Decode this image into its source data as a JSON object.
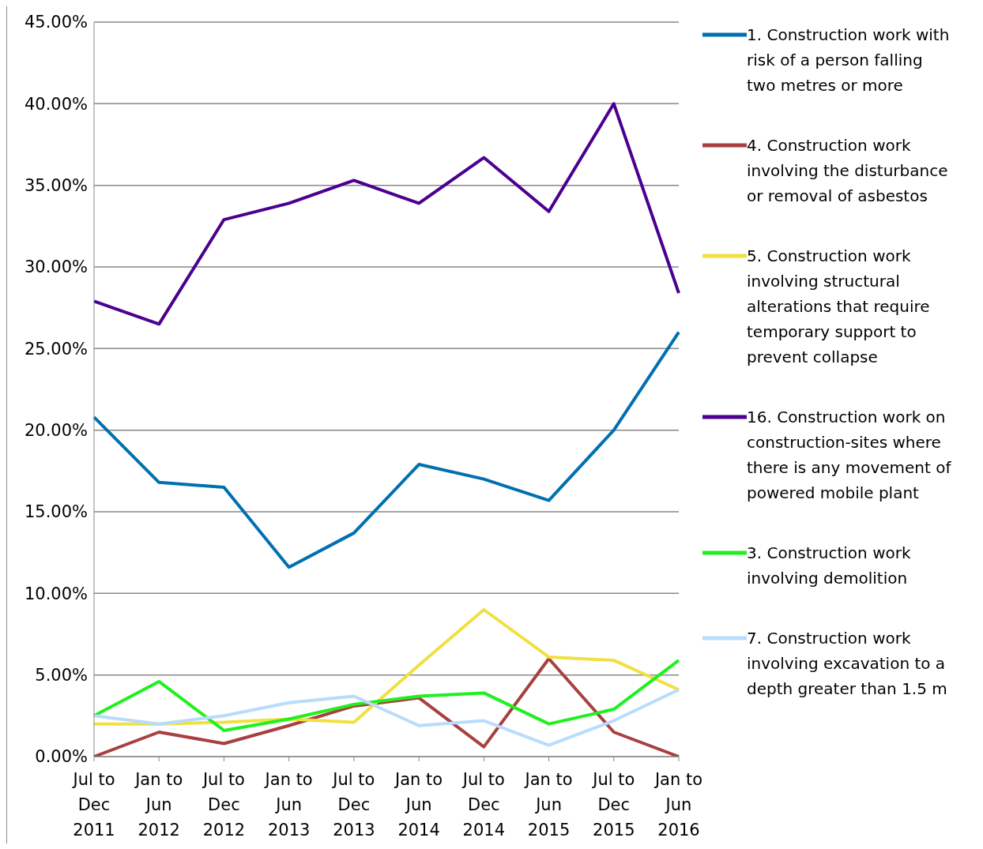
{
  "chart_data": {
    "type": "line",
    "categories": [
      "Jul to Dec 2011",
      "Jan to Jun 2012",
      "Jul to Dec 2012",
      "Jan to Jun 2013",
      "Jul to Dec 2013",
      "Jan to Jun 2014",
      "Jul to Dec 2014",
      "Jan to Jun 2015",
      "Jul to Dec 2015",
      "Jan to Jun 2016"
    ],
    "series": [
      {
        "name": "1. Construction work with risk of a person falling two metres or more",
        "color": "#0070b0",
        "values": [
          20.8,
          16.8,
          16.5,
          11.6,
          13.7,
          17.9,
          17.0,
          15.7,
          20.0,
          26.0
        ]
      },
      {
        "name": "4. Construction work involving the disturbance or removal of asbestos",
        "color": "#a84040",
        "values": [
          0.0,
          1.5,
          0.8,
          1.9,
          3.1,
          3.6,
          0.6,
          6.0,
          1.5,
          0.0
        ]
      },
      {
        "name": "5. Construction work involving structural alterations that require temporary support to prevent collapse",
        "color": "#f0e040",
        "values": [
          2.0,
          2.0,
          2.1,
          2.3,
          2.1,
          5.6,
          9.0,
          6.1,
          5.9,
          4.1
        ]
      },
      {
        "name": "16. Construction work on construction-sites where there is any movement of powered mobile plant",
        "color": "#4b0091",
        "values": [
          27.9,
          26.5,
          32.9,
          33.9,
          35.3,
          33.9,
          36.7,
          33.4,
          40.0,
          28.4
        ]
      },
      {
        "name": "3. Construction work involving demolition",
        "color": "#20f020",
        "values": [
          2.5,
          4.6,
          1.6,
          2.3,
          3.2,
          3.7,
          3.9,
          2.0,
          2.9,
          5.9
        ]
      },
      {
        "name": "7. Construction work involving excavation to a depth greater than 1.5 m",
        "color": "#b8dcfc",
        "values": [
          2.5,
          2.0,
          2.5,
          3.3,
          3.7,
          1.9,
          2.2,
          0.7,
          2.2,
          4.1
        ]
      }
    ],
    "ylim": [
      0,
      45
    ],
    "yticks": [
      {
        "value": 0,
        "label": "0.00%"
      },
      {
        "value": 5,
        "label": "5.00%"
      },
      {
        "value": 10,
        "label": "10.00%"
      },
      {
        "value": 15,
        "label": "15.00%"
      },
      {
        "value": 20,
        "label": "20.00%"
      },
      {
        "value": 25,
        "label": "25.00%"
      },
      {
        "value": 30,
        "label": "30.00%"
      },
      {
        "value": 35,
        "label": "35.00%"
      },
      {
        "value": 40,
        "label": "40.00%"
      },
      {
        "value": 45,
        "label": "45.00%"
      }
    ],
    "grid": "y",
    "legend": "right",
    "marker": "none",
    "line_style": "solid"
  }
}
